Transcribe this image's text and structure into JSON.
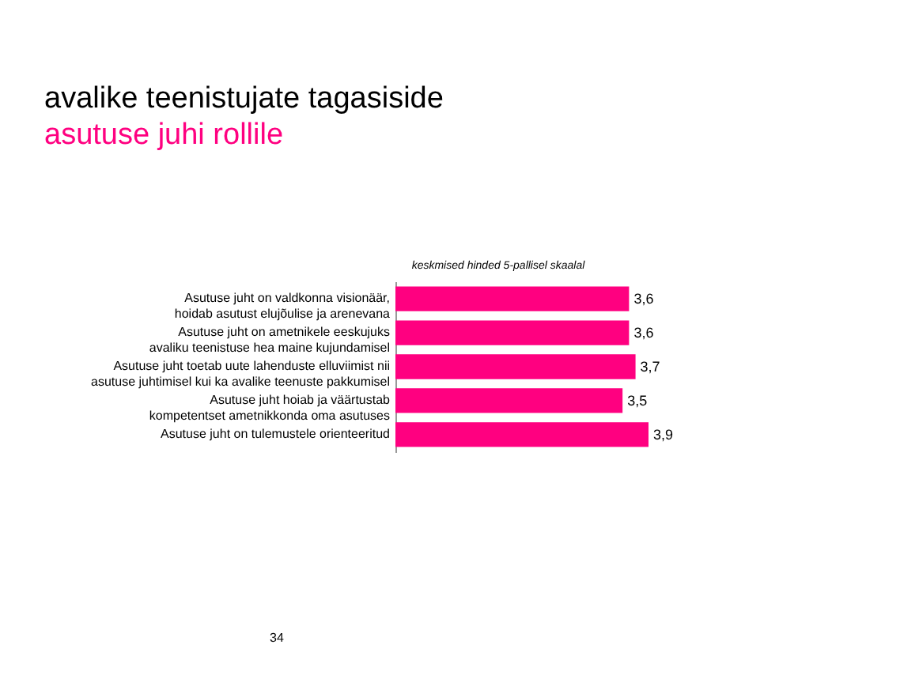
{
  "chart_data": {
    "type": "bar",
    "orientation": "horizontal",
    "title": "avalike teenistujate tagasiside",
    "subtitle": "asutuse juhi rollile",
    "categories": [
      "Asutuse juht on valdkonna visionäär,\nhoidab asutust elujõulise ja arenevana",
      "Asutuse juht on ametnikele eeskujuks\navaliku teenistuse hea maine kujundamisel",
      "Asutuse juht toetab uute lahenduste elluviimist nii\nasutuse juhtimisel kui ka avalike teenuste pakkumisel",
      "Asutuse juht hoiab ja väärtustab\nkompetentset ametnikkonda oma asutuses",
      "Asutuse juht on tulemustele orienteeritud"
    ],
    "values": [
      3.6,
      3.6,
      3.7,
      3.5,
      3.9
    ],
    "value_labels": [
      "3,6",
      "3,6",
      "3,7",
      "3,5",
      "3,9"
    ],
    "color": "#ff0080",
    "annotations": [
      "keskmised hinded 5-pallisel skaalal",
      "34"
    ]
  }
}
